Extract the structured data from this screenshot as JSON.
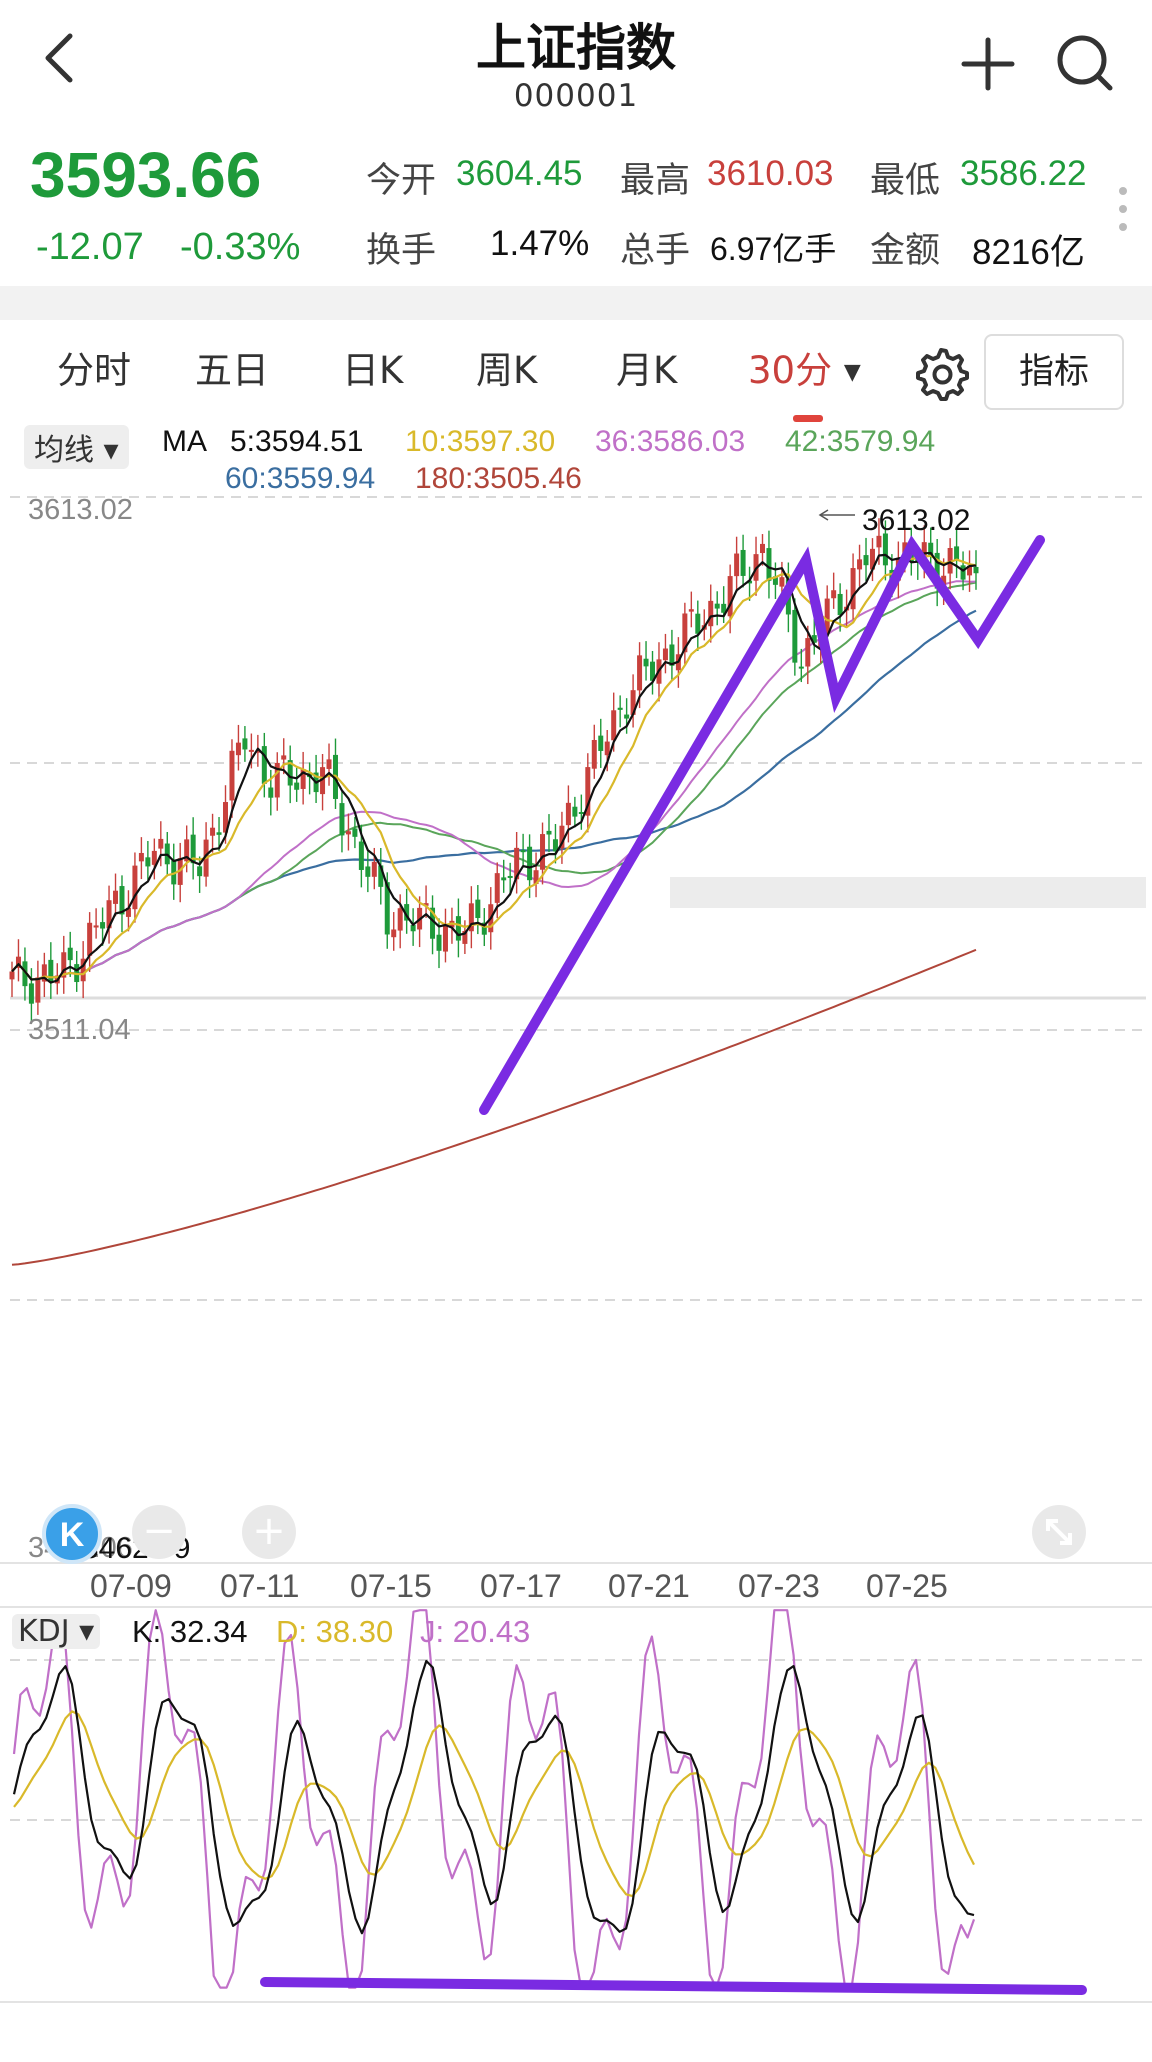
{
  "header": {
    "title": "上证指数",
    "code": "000001",
    "back_icon": "chevron-left-icon",
    "add_icon": "plus-icon",
    "search_icon": "search-icon"
  },
  "quote": {
    "price": "3593.66",
    "change": "-12.07",
    "change_pct": "-0.33%",
    "open_label": "今开",
    "open": "3604.45",
    "high_label": "最高",
    "high": "3610.03",
    "low_label": "最低",
    "low": "3586.22",
    "turnover_label": "换手",
    "turnover": "1.47%",
    "volume_label": "总手",
    "volume": "6.97亿手",
    "amount_label": "金额",
    "amount": "8216亿",
    "colors": {
      "down": "#1e9a3a",
      "up": "#c8403c"
    }
  },
  "tabs": {
    "items": [
      "分时",
      "五日",
      "日K",
      "周K",
      "月K"
    ],
    "active": "30分",
    "active_caret": "▼",
    "settings_icon": "gear-icon",
    "indicator_button": "指标"
  },
  "ma_legend": {
    "dropdown": "均线 ▾",
    "label": "MA",
    "ma5": "5:3594.51",
    "ma10": "10:3597.30",
    "ma36": "36:3586.03",
    "ma42": "42:3579.94",
    "ma60": "60:3559.94",
    "ma180": "180:3505.46",
    "colors": {
      "ma5": "#111111",
      "ma10": "#d9b92a",
      "ma36": "#c070c8",
      "ma42": "#5aa55a",
      "ma60": "#3a6ea0",
      "ma180": "#b0463a"
    }
  },
  "price_axis": {
    "top": "3613.02",
    "mid": "3511.04",
    "bottom": "3409.06"
  },
  "annotations": {
    "high_marker": "3613.02",
    "low_marker": "3462.79",
    "overlay_color": "#7a2be2"
  },
  "chart_data": {
    "type": "candlestick",
    "x_labels": [
      "07-09",
      "07-11",
      "07-15",
      "07-17",
      "07-21",
      "07-23",
      "07-25"
    ],
    "y_range": [
      3409.06,
      3613.02
    ],
    "series": [
      {
        "name": "MA5",
        "last": 3594.51
      },
      {
        "name": "MA10",
        "last": 3597.3
      },
      {
        "name": "MA36",
        "last": 3586.03
      },
      {
        "name": "MA42",
        "last": 3579.94
      },
      {
        "name": "MA60",
        "last": 3559.94
      },
      {
        "name": "MA180",
        "last": 3505.46
      }
    ]
  },
  "zoom_controls": {
    "zoom_out": "minus-icon",
    "zoom_in": "plus-icon",
    "fullscreen": "expand-icon",
    "brand": "K"
  },
  "kdj": {
    "dropdown": "KDJ ▾",
    "k": "K: 32.34",
    "d": "D: 38.30",
    "j": "J: 20.43",
    "colors": {
      "k": "#111111",
      "d": "#d9b92a",
      "j": "#c070c8"
    }
  }
}
